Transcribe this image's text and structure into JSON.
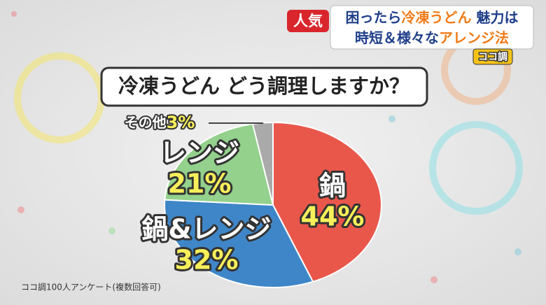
{
  "chart_data": {
    "type": "pie",
    "title": "冷凍うどん どう調理しますか？",
    "badge": "人気",
    "headline": [
      [
        "困ったら",
        "冷凍うどん",
        " 魅力は"
      ],
      [
        "時短＆様々な",
        "アレンジ法"
      ]
    ],
    "logo": "ココ調",
    "source": "ココ調100人アンケート(複数回答可)",
    "categories": [
      "鍋",
      "鍋&レンジ",
      "レンジ",
      "その他"
    ],
    "values": [
      44,
      32,
      21,
      3
    ],
    "value_labels": [
      "44%",
      "32%",
      "21%",
      "3%"
    ],
    "colors": [
      "#e9574b",
      "#3f86c8",
      "#93d18c",
      "#aaaaaa"
    ]
  }
}
